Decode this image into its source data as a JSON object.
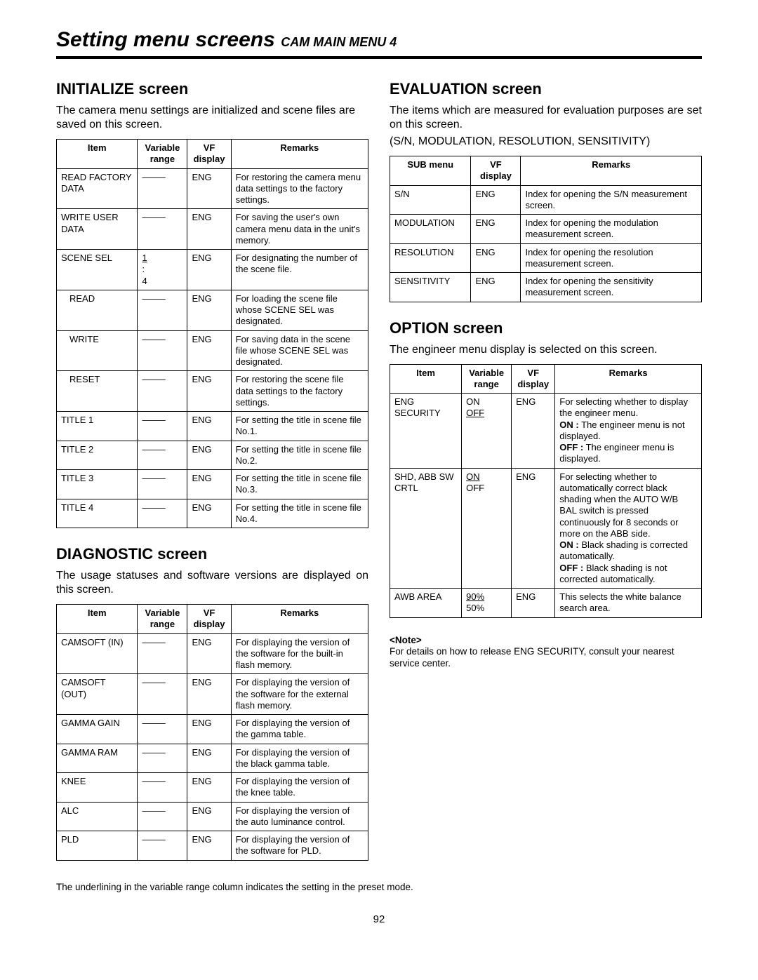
{
  "header": {
    "main": "Setting menu screens",
    "sub": "CAM MAIN MENU 4"
  },
  "initialize": {
    "heading": "INITIALIZE screen",
    "desc": "The camera menu settings are initialized and scene files are saved on this screen.",
    "columns": {
      "item": "Item",
      "range": "Variable range",
      "vf": "VF display",
      "remarks": "Remarks"
    },
    "rows": [
      {
        "item": "READ FACTORY DATA",
        "indent": false,
        "range": "——–",
        "vf": "ENG",
        "remarks": "For restoring the camera menu data settings to the factory settings."
      },
      {
        "item": "WRITE USER DATA",
        "indent": false,
        "range": "——–",
        "vf": "ENG",
        "remarks": "For saving the user's own camera menu data in the unit's memory."
      },
      {
        "item": "SCENE SEL",
        "indent": false,
        "range": "1\n:\n4",
        "range_underline_first": true,
        "vf": "ENG",
        "remarks": "For designating the number of the scene file."
      },
      {
        "item": "READ",
        "indent": true,
        "range": "——–",
        "vf": "ENG",
        "remarks": "For loading the scene file whose SCENE SEL was designated."
      },
      {
        "item": "WRITE",
        "indent": true,
        "range": "——–",
        "vf": "ENG",
        "remarks": "For saving data in the scene file whose SCENE SEL was designated."
      },
      {
        "item": "RESET",
        "indent": true,
        "range": "——–",
        "vf": "ENG",
        "remarks": "For restoring the scene file data settings to the factory settings."
      },
      {
        "item": "TITLE 1",
        "indent": false,
        "range": "——–",
        "vf": "ENG",
        "remarks": "For setting the title in scene file No.1."
      },
      {
        "item": "TITLE 2",
        "indent": false,
        "range": "——–",
        "vf": "ENG",
        "remarks": "For setting the title in scene file No.2."
      },
      {
        "item": "TITLE 3",
        "indent": false,
        "range": "——–",
        "vf": "ENG",
        "remarks": "For setting the title in scene file No.3."
      },
      {
        "item": "TITLE 4",
        "indent": false,
        "range": "——–",
        "vf": "ENG",
        "remarks": "For setting the title in scene file No.4."
      }
    ]
  },
  "diagnostic": {
    "heading": "DIAGNOSTIC screen",
    "desc": "The usage statuses and software versions are displayed on this screen.",
    "columns": {
      "item": "Item",
      "range": "Variable range",
      "vf": "VF display",
      "remarks": "Remarks"
    },
    "rows": [
      {
        "item": "CAMSOFT (IN)",
        "range": "——–",
        "vf": "ENG",
        "remarks": "For displaying the version of the software for the built-in flash memory."
      },
      {
        "item": "CAMSOFT (OUT)",
        "range": "——–",
        "vf": "ENG",
        "remarks": "For displaying the version of the software for the external flash memory."
      },
      {
        "item": "GAMMA GAIN",
        "range": "——–",
        "vf": "ENG",
        "remarks": "For displaying the version of the gamma table."
      },
      {
        "item": "GAMMA RAM",
        "range": "——–",
        "vf": "ENG",
        "remarks": "For displaying the version of the black gamma table."
      },
      {
        "item": "KNEE",
        "range": "——–",
        "vf": "ENG",
        "remarks": "For displaying the version of the knee table."
      },
      {
        "item": "ALC",
        "range": "——–",
        "vf": "ENG",
        "remarks": "For displaying the version of the auto luminance control."
      },
      {
        "item": "PLD",
        "range": "——–",
        "vf": "ENG",
        "remarks": "For displaying the version of the software for PLD."
      }
    ]
  },
  "evaluation": {
    "heading": "EVALUATION screen",
    "desc1": "The items which are measured for evaluation purposes are set on this screen.",
    "desc2": "(S/N, MODULATION, RESOLUTION, SENSITIVITY)",
    "columns": {
      "sub": "SUB menu",
      "vf": "VF display",
      "remarks": "Remarks"
    },
    "rows": [
      {
        "sub": "S/N",
        "vf": "ENG",
        "remarks": "Index for opening the S/N measurement screen."
      },
      {
        "sub": "MODULATION",
        "vf": "ENG",
        "remarks": "Index for opening the modulation measurement screen."
      },
      {
        "sub": "RESOLUTION",
        "vf": "ENG",
        "remarks": "Index for opening the resolution measurement screen."
      },
      {
        "sub": "SENSITIVITY",
        "vf": "ENG",
        "remarks": "Index for opening the sensitivity measurement screen."
      }
    ]
  },
  "option": {
    "heading": "OPTION screen",
    "desc": "The engineer menu display is selected on this screen.",
    "columns": {
      "item": "Item",
      "range": "Variable range",
      "vf": "VF display",
      "remarks": "Remarks"
    },
    "rows": [
      {
        "item": "ENG SECURITY",
        "range_parts": [
          {
            "text": "ON",
            "u": false
          },
          {
            "text": "OFF",
            "u": true
          }
        ],
        "vf": "ENG",
        "remarks_html": "For selecting whether to display the engineer menu.<br><span class=\"bold-inline\">ON :</span> The engineer menu is not displayed.<br><span class=\"bold-inline\">OFF :</span> The engineer menu is displayed."
      },
      {
        "item": "SHD, ABB SW CRTL",
        "range_parts": [
          {
            "text": "ON",
            "u": true
          },
          {
            "text": "OFF",
            "u": false
          }
        ],
        "vf": "ENG",
        "remarks_html": "For selecting whether to automatically correct black shading when the AUTO W/B BAL switch is pressed continuously for 8 seconds or more on the ABB side.<br><span class=\"bold-inline\">ON :</span> Black shading is corrected automatically.<br><span class=\"bold-inline\">OFF :</span> Black shading is not corrected automatically."
      },
      {
        "item": "AWB AREA",
        "range_parts": [
          {
            "text": "90%",
            "u": true
          },
          {
            "text": "50%",
            "u": false
          }
        ],
        "vf": "ENG",
        "remarks_html": "This selects the white balance search area."
      }
    ],
    "note_label": "<Note>",
    "note_text": "For details on how to release ENG SECURITY, consult your nearest service center."
  },
  "footnote": "The underlining in the variable range column indicates the setting in the preset mode.",
  "page": "92"
}
